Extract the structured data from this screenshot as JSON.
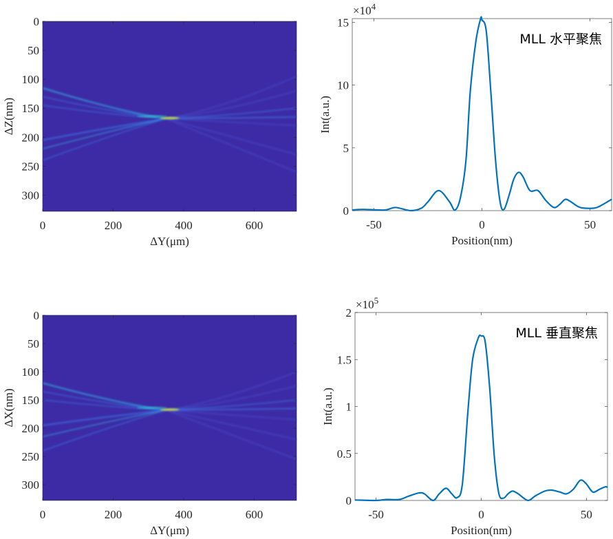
{
  "chart_data": [
    {
      "type": "heatmap",
      "xlabel": "ΔY(μm)",
      "ylabel": "ΔZ(nm)",
      "xlim": [
        0,
        720
      ],
      "ylim": [
        0,
        328
      ],
      "y_reversed": true,
      "xticks": [
        0,
        200,
        400,
        600
      ],
      "yticks": [
        0,
        50,
        100,
        150,
        200,
        250,
        300
      ],
      "colormap": "parula",
      "background_color": "#3d2ba5",
      "focus": [
        350,
        168
      ],
      "beams_left_z": [
        115,
        130,
        145,
        205,
        220,
        240
      ],
      "beams_right_z": [
        95,
        120,
        150,
        165,
        180,
        230,
        260
      ]
    },
    {
      "type": "line",
      "xlabel": "Position(nm)",
      "ylabel": "Int(a.u.)",
      "annotation": "MLL 水平聚焦",
      "exponent": "×10",
      "exponent_power": "4",
      "xlim": [
        -60,
        60
      ],
      "ylim": [
        0,
        15.3
      ],
      "xticks": [
        -50,
        0,
        50
      ],
      "yticks": [
        0,
        5,
        10,
        15
      ],
      "color": "#0072bd",
      "x": [
        -60,
        -55,
        -45,
        -40,
        -33,
        -28,
        -25,
        -20,
        -15,
        -12.5,
        -10,
        -7.4,
        -5.4,
        -2.8,
        -0.6,
        0,
        2,
        4.1,
        6.3,
        8.4,
        10.2,
        12.6,
        14.7,
        16.9,
        19,
        22.2,
        25.9,
        29.6,
        33.3,
        36,
        38.6,
        41.2,
        45.5,
        51.9,
        55,
        60
      ],
      "y": [
        0.05,
        0.1,
        0.05,
        0.25,
        0,
        0.2,
        0.7,
        1.6,
        0.7,
        0.05,
        1.0,
        4.0,
        9.5,
        13.5,
        15.3,
        15.2,
        14.3,
        9.5,
        4.0,
        0.7,
        0.1,
        1.25,
        2.5,
        3.05,
        2.7,
        1.6,
        1.6,
        0.8,
        0.25,
        0.5,
        0.9,
        0.7,
        0.25,
        0.2,
        0.4,
        0.9
      ]
    },
    {
      "type": "heatmap",
      "xlabel": "ΔY(μm)",
      "ylabel": "ΔX(nm)",
      "xlim": [
        0,
        720
      ],
      "ylim": [
        0,
        328
      ],
      "y_reversed": true,
      "xticks": [
        0,
        200,
        400,
        600
      ],
      "yticks": [
        0,
        50,
        100,
        150,
        200,
        250,
        300
      ],
      "colormap": "parula",
      "background_color": "#3d2ba5",
      "focus": [
        350,
        168
      ],
      "beams_left_z": [
        120,
        135,
        150,
        195,
        215,
        240
      ],
      "beams_right_z": [
        100,
        125,
        150,
        165,
        185,
        220,
        255
      ]
    },
    {
      "type": "line",
      "xlabel": "Position(nm)",
      "ylabel": "Int(a.u.)",
      "annotation": "MLL 垂直聚焦",
      "exponent": "×10",
      "exponent_power": "5",
      "xlim": [
        -60,
        60
      ],
      "ylim": [
        0,
        2
      ],
      "xticks": [
        -50,
        0,
        50
      ],
      "yticks": [
        0,
        0.5,
        1,
        1.5,
        2
      ],
      "color": "#0072bd",
      "x": [
        -60,
        -50,
        -45,
        -39,
        -34.6,
        -29.6,
        -27,
        -22.9,
        -20,
        -16.7,
        -14,
        -11.5,
        -9,
        -6.3,
        -4.1,
        -1.4,
        0,
        1.85,
        4,
        6.2,
        8.4,
        10.6,
        12.7,
        14.9,
        17.6,
        22.2,
        25.8,
        30.2,
        33.4,
        37.3,
        40.5,
        43.8,
        47.1,
        49.8,
        53,
        56.3,
        59,
        60
      ],
      "y": [
        0.005,
        0,
        0.01,
        0.01,
        0.045,
        0.08,
        0.07,
        0,
        0.07,
        0.13,
        0.07,
        0.03,
        0.17,
        0.96,
        1.5,
        1.73,
        1.75,
        1.69,
        1.2,
        0.47,
        0.07,
        0.025,
        0.07,
        0.1,
        0.07,
        0,
        0.05,
        0.1,
        0.11,
        0.09,
        0.07,
        0.12,
        0.215,
        0.18,
        0.09,
        0.12,
        0.145,
        0.14
      ]
    }
  ]
}
